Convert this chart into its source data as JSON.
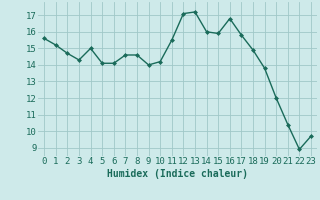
{
  "x": [
    0,
    1,
    2,
    3,
    4,
    5,
    6,
    7,
    8,
    9,
    10,
    11,
    12,
    13,
    14,
    15,
    16,
    17,
    18,
    19,
    20,
    21,
    22,
    23
  ],
  "y": [
    15.6,
    15.2,
    14.7,
    14.3,
    15.0,
    14.1,
    14.1,
    14.6,
    14.6,
    14.0,
    14.2,
    15.5,
    17.1,
    17.2,
    16.0,
    15.9,
    16.8,
    15.8,
    14.9,
    13.8,
    12.0,
    10.4,
    8.9,
    9.7
  ],
  "line_color": "#1a6b5a",
  "marker": "D",
  "marker_size": 2,
  "bg_color": "#ceeaea",
  "grid_color": "#a0c8c8",
  "xlabel": "Humidex (Indice chaleur)",
  "ylabel_ticks": [
    9,
    10,
    11,
    12,
    13,
    14,
    15,
    16,
    17
  ],
  "ylim": [
    8.5,
    17.8
  ],
  "xlim": [
    -0.5,
    23.5
  ],
  "xlabel_fontsize": 7,
  "tick_fontsize": 6.5,
  "linewidth": 1.0
}
